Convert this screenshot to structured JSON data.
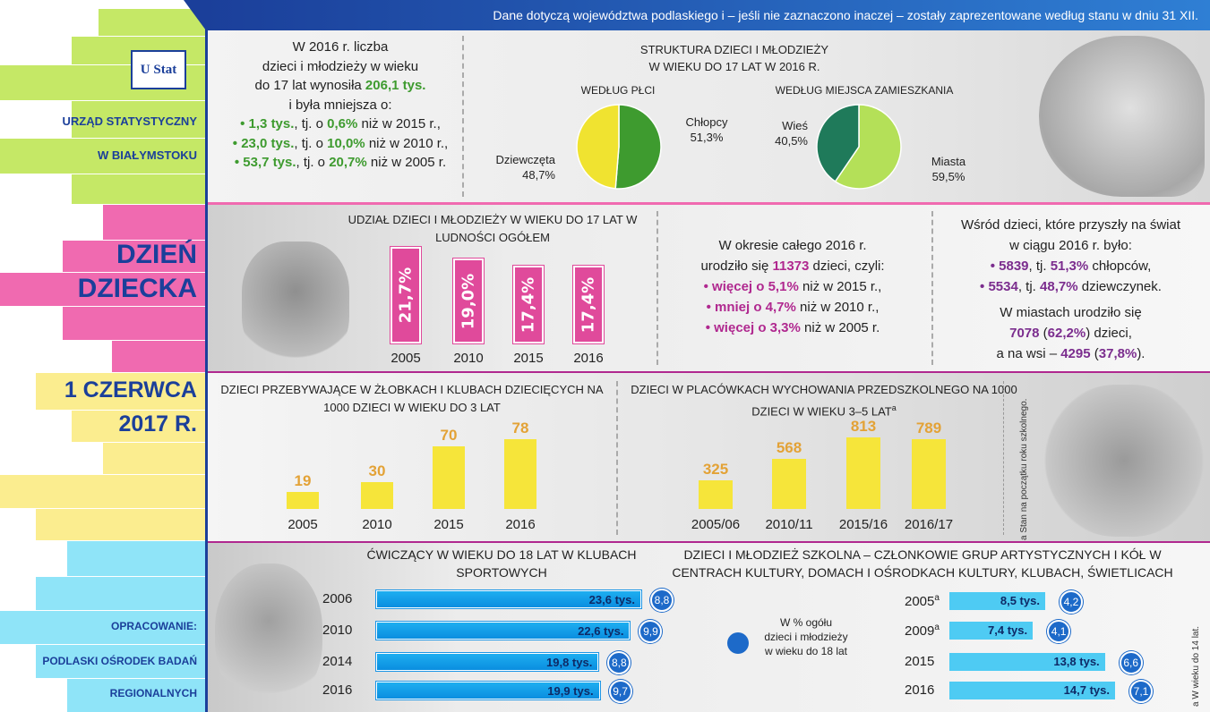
{
  "header": {
    "note": "Dane dotyczą województwa podlaskiego i – jeśli nie zaznaczono inaczej – zostały zaprezentowane według stanu w dniu 31 XII."
  },
  "sidebar": {
    "logo": "U Stat",
    "org1": "URZĄD STATYSTYCZNY",
    "org2": "W BIAŁYMSTOKU",
    "title1": "DZIEŃ",
    "title2": "DZIECKA",
    "date1": "1 CZERWCA",
    "date2": "2017 R.",
    "prep": "OPRACOWANIE:",
    "prep1": "PODLASKI OŚRODEK BADAŃ",
    "prep2": "REGIONALNYCH"
  },
  "intro": {
    "l1": "W 2016 r. liczba",
    "l2": "dzieci i młodzieży w wieku",
    "l3a": "do 17 lat wynosiła ",
    "l3b": "206,1 tys.",
    "l4": "i była mniejsza o:",
    "b1a": "• 1,3 tys.",
    "b1b": ", tj. o ",
    "b1c": "0,6%",
    "b1d": " niż w 2015 r.,",
    "b2a": "• 23,0 tys.",
    "b2b": ", tj. o ",
    "b2c": "10,0%",
    "b2d": " niż w 2010 r.,",
    "b3a": "• 53,7 tys.",
    "b3b": ", tj. o ",
    "b3c": "20,7%",
    "b3d": " niż w 2005 r."
  },
  "structure": {
    "title1": "STRUKTURA DZIECI I MŁODZIEŻY",
    "title2": "W WIEKU DO 17 LAT W 2016 R.",
    "sex_label": "WEDŁUG PŁCI",
    "place_label": "WEDŁUG MIEJSCA ZAMIESZKANIA"
  },
  "births": {
    "l1": "W okresie całego 2016 r.",
    "l2a": "urodziło się ",
    "l2b": "11373",
    "l2c": " dzieci, czyli:",
    "b1a": "• więcej o ",
    "b1b": "5,1%",
    "b1c": " niż w 2015 r.,",
    "b2a": "• mniej o ",
    "b2b": "4,7%",
    "b2c": " niż w 2010 r.,",
    "b3a": "• więcej o ",
    "b3b": "3,3%",
    "b3c": " niż w 2005 r."
  },
  "newborn": {
    "l1": "Wśród dzieci, które przyszły na świat",
    "l2": "w ciągu 2016 r. było:",
    "b1a": "• 5839",
    "b1b": ", tj. ",
    "b1c": "51,3%",
    "b1d": " chłopców,",
    "b2a": "• 5534",
    "b2b": ", tj. ",
    "b2c": "48,7%",
    "b2d": " dziewczynek.",
    "c1": "W miastach urodziło się",
    "c2a": "7078",
    "c2b": " (",
    "c2c": "62,2%",
    "c2d": ") dzieci,",
    "c3a": "a na wsi – ",
    "c3b": "4295",
    "c3c": " (",
    "c3d": "37,8%",
    "c3e": ")."
  },
  "footnotes": {
    "a1": "a Stan na początku roku szkolnego.",
    "a2": "a W wieku do 14 lat."
  },
  "legend_circle": {
    "l1": "W % ogółu",
    "l2": "dzieci i młodzieży",
    "l3": "w wieku do 18 lat"
  },
  "colors": {
    "green": "#3e9b2f",
    "pink": "#e04a9b",
    "yellow": "#f6e53a",
    "blue": "#1d6ac9",
    "cyan": "#4ecbf3"
  },
  "chart_data": [
    {
      "type": "pie",
      "title": "WEDŁUG PŁCI",
      "labels": [
        "Chłopcy",
        "Dziewczęta"
      ],
      "values": [
        51.3,
        48.7
      ],
      "value_labels": [
        "51,3%",
        "48,7%"
      ],
      "colors": [
        "#3e9b2f",
        "#f0e330"
      ]
    },
    {
      "type": "pie",
      "title": "WEDŁUG MIEJSCA ZAMIESZKANIA",
      "labels": [
        "Miasta",
        "Wieś"
      ],
      "values": [
        59.5,
        40.5
      ],
      "value_labels": [
        "59,5%",
        "40,5%"
      ],
      "colors": [
        "#b4e058",
        "#1f7a5a"
      ]
    },
    {
      "type": "bar",
      "title": "UDZIAŁ DZIECI I MŁODZIEŻY W WIEKU DO 17 LAT W LUDNOŚCI OGÓŁEM",
      "categories": [
        "2005",
        "2010",
        "2015",
        "2016"
      ],
      "values": [
        21.7,
        19.0,
        17.4,
        17.4
      ],
      "value_labels": [
        "21,7%",
        "19,0%",
        "17,4%",
        "17,4%"
      ]
    },
    {
      "type": "bar",
      "title": "DZIECI PRZEBYWAJĄCE W ŻŁOBKACH I KLUBACH DZIECIĘCYCH NA 1000 DZIECI W WIEKU DO 3 LAT",
      "categories": [
        "2005",
        "2010",
        "2015",
        "2016"
      ],
      "values": [
        19,
        30,
        70,
        78
      ]
    },
    {
      "type": "bar",
      "title": "DZIECI W PLACÓWKACH WYCHOWANIA PRZEDSZKOLNEGO NA 1000 DZIECI W WIEKU 3–5 LAT",
      "title_sup": "a",
      "categories": [
        "2005/06",
        "2010/11",
        "2015/16",
        "2016/17"
      ],
      "values": [
        325,
        568,
        813,
        789
      ]
    },
    {
      "type": "bar",
      "title": "ĆWICZĄCY W WIEKU DO 18 LAT W KLUBACH SPORTOWYCH",
      "orientation": "horizontal",
      "categories": [
        "2006",
        "2010",
        "2014",
        "2016"
      ],
      "values": [
        23.6,
        22.6,
        19.8,
        19.9
      ],
      "value_labels": [
        "23,6 tys.",
        "22,6 tys.",
        "19,8 tys.",
        "19,9 tys."
      ],
      "percent": [
        "8,8",
        "9,9",
        "8,8",
        "9,7"
      ]
    },
    {
      "type": "bar",
      "title": "DZIECI I MŁODZIEŻ SZKOLNA – CZŁONKOWIE GRUP ARTYSTYCZNYCH I KÓŁ W CENTRACH KULTURY, DOMACH I OŚRODKACH KULTURY, KLUBACH, ŚWIETLICACH",
      "orientation": "horizontal",
      "categories": [
        "2005",
        "2009",
        "2015",
        "2016"
      ],
      "category_sup": [
        "a",
        "a",
        "",
        ""
      ],
      "values": [
        8.5,
        7.4,
        13.8,
        14.7
      ],
      "value_labels": [
        "8,5 tys.",
        "7,4 tys.",
        "13,8 tys.",
        "14,7 tys."
      ],
      "percent": [
        "4,2",
        "4,1",
        "6,6",
        "7,1"
      ]
    }
  ]
}
